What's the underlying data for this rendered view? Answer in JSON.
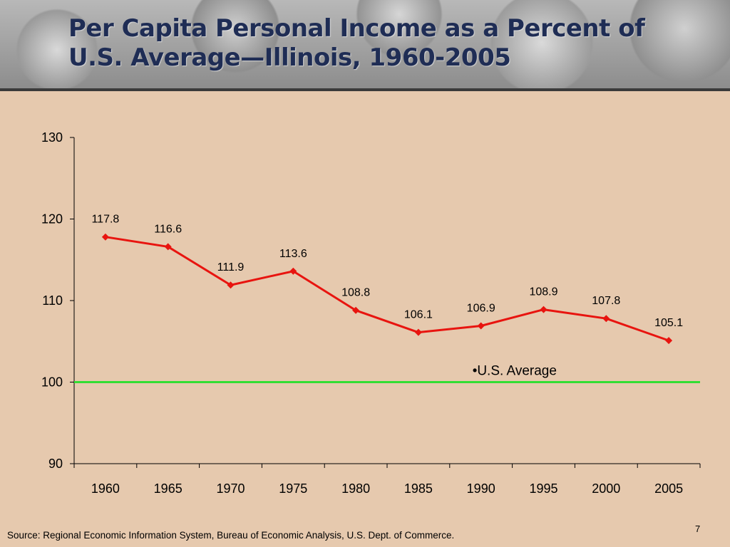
{
  "slide": {
    "title": "Per Capita Personal Income as a Percent of U.S. Average—Illinois, 1960-2005",
    "source": "Source: Regional Economic Information System, Bureau of Economic Analysis, U.S. Dept. of Commerce.",
    "page_number": "7"
  },
  "colors": {
    "background": "#e6c9ae",
    "series_line": "#e8140f",
    "reference_line": "#33dd33",
    "title": "#1f2d55"
  },
  "chart_data": {
    "type": "line",
    "title": "Per Capita Personal Income as a Percent of U.S. Average—Illinois, 1960-2005",
    "xlabel": "",
    "ylabel": "",
    "categories": [
      "1960",
      "1965",
      "1970",
      "1975",
      "1980",
      "1985",
      "1990",
      "1995",
      "2000",
      "2005"
    ],
    "series": [
      {
        "values": [
          117.8,
          116.6,
          111.9,
          113.6,
          108.8,
          106.1,
          106.9,
          108.9,
          107.8,
          105.1
        ],
        "labels": [
          "117.8",
          "116.6",
          "111.9",
          "113.6",
          "108.8",
          "106.1",
          "106.9",
          "108.9",
          "107.8",
          "105.1"
        ],
        "color": "#e8140f",
        "marker": "diamond"
      }
    ],
    "reference_line": {
      "value": 100,
      "label": "•U.S. Average",
      "color": "#33dd33"
    },
    "ylim": [
      90,
      130
    ],
    "yticks": [
      90,
      100,
      110,
      120,
      130
    ],
    "ytick_labels": [
      "90",
      "100",
      "110",
      "120",
      "130"
    ],
    "grid": false,
    "legend": "none"
  }
}
